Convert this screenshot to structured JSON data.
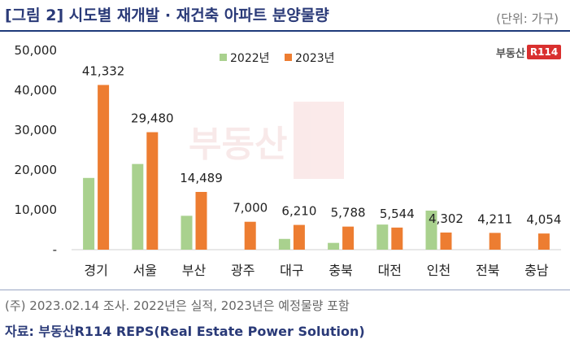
{
  "header": {
    "title": "[그림 2] 시도별 재개발 · 재건축 아파트 분양물량",
    "unit": "(단위: 가구)"
  },
  "logo": {
    "text": "부동산",
    "badge": "R114"
  },
  "watermark": {
    "text": "부동산",
    "badge": "R114"
  },
  "footer": {
    "note": "(주) 2023.02.14 조사. 2022년은 실적, 2023년은 예정물량 포함",
    "source": "자료: 부동산R114 REPS(Real Estate Power Solution)"
  },
  "colors": {
    "series_2022": "#a9d18e",
    "series_2023": "#ed7d31",
    "title": "#2a3a78"
  },
  "chart_data": {
    "type": "bar",
    "categories": [
      "경기",
      "서울",
      "부산",
      "광주",
      "대구",
      "충북",
      "대전",
      "인천",
      "전북",
      "충남"
    ],
    "series": [
      {
        "name": "2022년",
        "values": [
          18000,
          21500,
          8500,
          0,
          2700,
          1700,
          6300,
          9800,
          0,
          0
        ]
      },
      {
        "name": "2023년",
        "values": [
          41332,
          29480,
          14489,
          7000,
          6210,
          5788,
          5544,
          4302,
          4211,
          4054
        ]
      }
    ],
    "data_labels": [
      "41,332",
      "29,480",
      "14,489",
      "7,000",
      "6,210",
      "5,788",
      "5,544",
      "4,302",
      "4,211",
      "4,054"
    ],
    "ylim": [
      0,
      50000
    ],
    "yticks": [
      0,
      10000,
      20000,
      30000,
      40000,
      50000
    ],
    "ytick_labels": [
      "-",
      "10,000",
      "20,000",
      "30,000",
      "40,000",
      "50,000"
    ],
    "legend_position": "top-center",
    "grid": false
  }
}
